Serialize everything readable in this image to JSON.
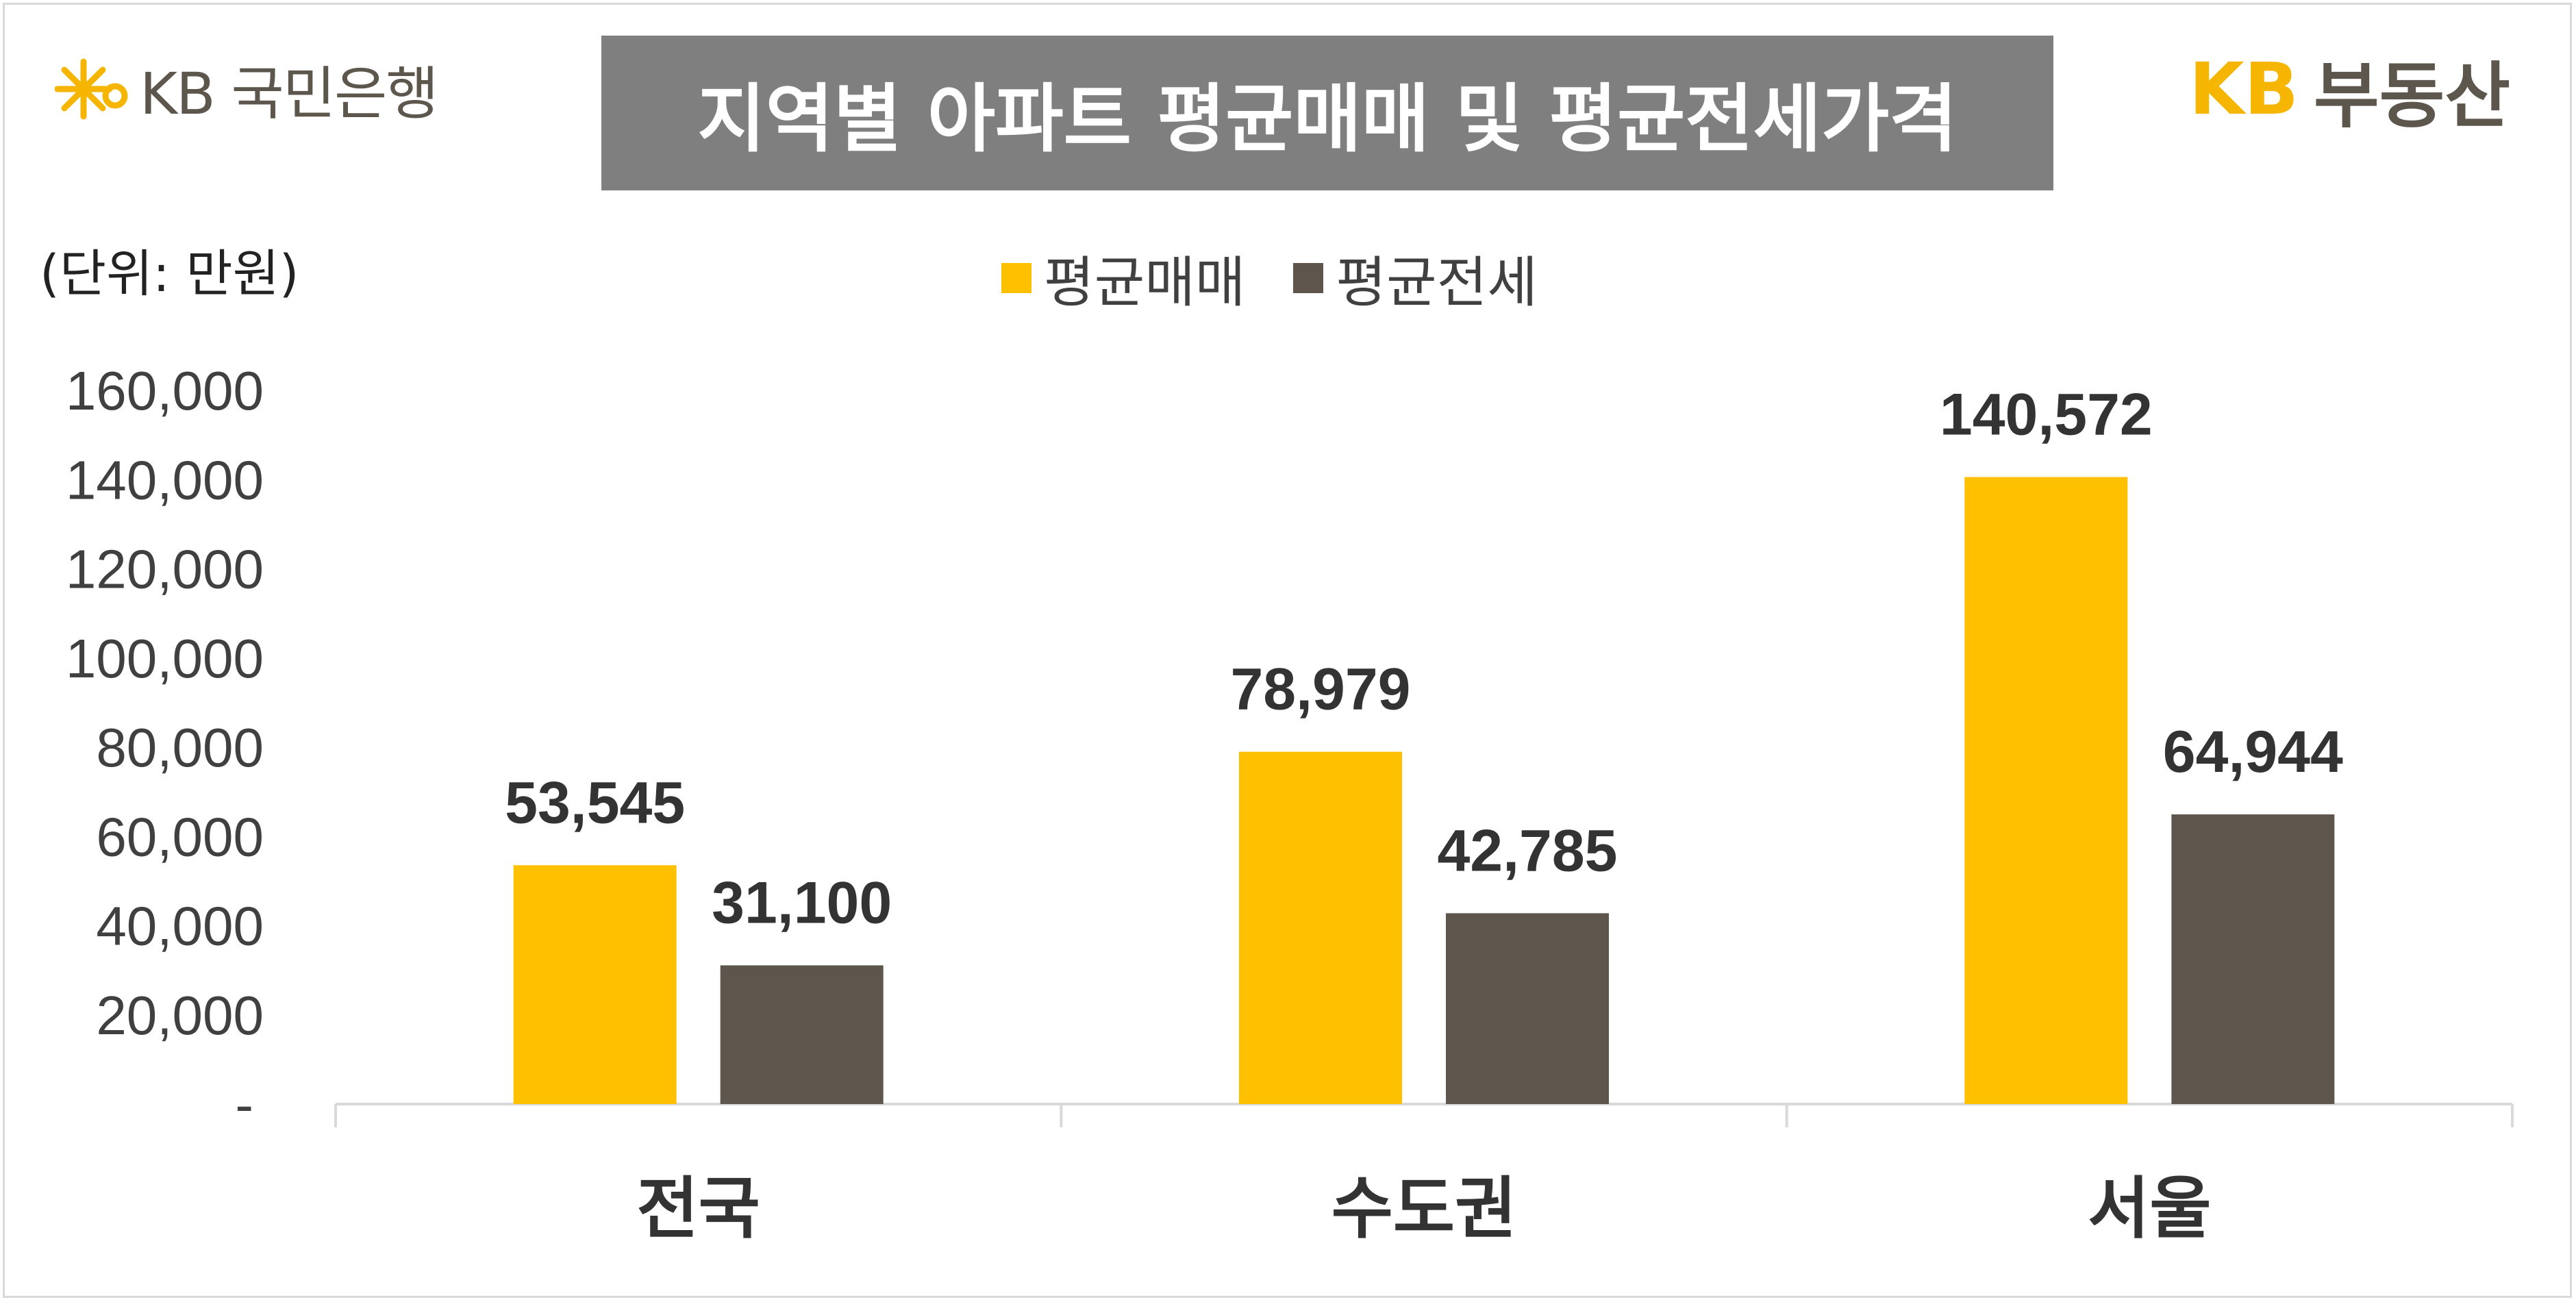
{
  "header": {
    "bank_logo_text": "KB 국민은행",
    "title": "지역별 아파트 평균매매 및 평균전세가격",
    "brand_kb": "KB",
    "brand_name": "부동산"
  },
  "unit_label": "(단위: 만원)",
  "colors": {
    "sale": "#FFC000",
    "jeonse": "#5E564C",
    "title_bg": "#7F7F7F",
    "kb_yellow": "#F5B500",
    "kb_gray": "#5D564C"
  },
  "chart_data": {
    "type": "bar",
    "categories": [
      "전국",
      "수도권",
      "서울"
    ],
    "series": [
      {
        "name": "평균매매",
        "values": [
          53545,
          78979,
          140572
        ],
        "labels": [
          "53,545",
          "78,979",
          "140,572"
        ]
      },
      {
        "name": "평균전세",
        "values": [
          31100,
          42785,
          64944
        ],
        "labels": [
          "31,100",
          "42,785",
          "64,944"
        ]
      }
    ],
    "ylim": [
      0,
      160000
    ],
    "yticks": [
      0,
      20000,
      40000,
      60000,
      80000,
      100000,
      120000,
      140000,
      160000
    ],
    "ytick_labels": [
      "-",
      "20,000",
      "40,000",
      "60,000",
      "80,000",
      "100,000",
      "120,000",
      "140,000",
      "160,000"
    ],
    "legend": "top-center",
    "grid": false
  }
}
